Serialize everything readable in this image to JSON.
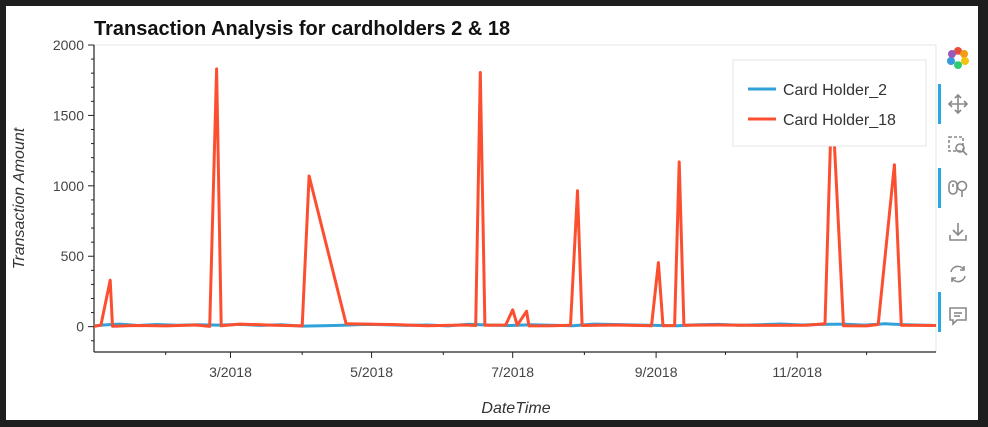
{
  "toolbar": {
    "tools": [
      "bokeh-logo-icon",
      "pan-icon",
      "box-zoom-icon",
      "wheel-zoom-icon",
      "save-icon",
      "reset-icon",
      "hover-icon"
    ]
  },
  "colors": {
    "series_1": "#30a2da",
    "series_2": "#fc4f30",
    "toolbar_accent": "#26aae1"
  },
  "chart_data": {
    "type": "line",
    "title": "Transaction Analysis for cardholders 2 & 18",
    "xlabel": "DateTime",
    "ylabel": "Transaction Amount",
    "xlim": [
      "2018-01-01",
      "2018-12-31"
    ],
    "ylim": [
      -180,
      2000
    ],
    "yticks": [
      0,
      500,
      1000,
      1500,
      2000
    ],
    "xticks": [
      {
        "date": "2018-03-01",
        "label": "3/2018"
      },
      {
        "date": "2018-05-01",
        "label": "5/2018"
      },
      {
        "date": "2018-07-01",
        "label": "7/2018"
      },
      {
        "date": "2018-09-01",
        "label": "9/2018"
      },
      {
        "date": "2018-11-01",
        "label": "11/2018"
      }
    ],
    "legend_position": "top-right",
    "grid": false,
    "series": [
      {
        "name": "Card Holder_2",
        "color": "#30a2da",
        "points": [
          [
            "2018-01-01",
            5
          ],
          [
            "2018-01-05",
            12
          ],
          [
            "2018-01-12",
            18
          ],
          [
            "2018-01-20",
            8
          ],
          [
            "2018-01-28",
            15
          ],
          [
            "2018-02-06",
            10
          ],
          [
            "2018-02-15",
            14
          ],
          [
            "2018-02-24",
            11
          ],
          [
            "2018-03-05",
            16
          ],
          [
            "2018-03-14",
            9
          ],
          [
            "2018-03-23",
            13
          ],
          [
            "2018-04-01",
            4
          ],
          [
            "2018-04-10",
            6
          ],
          [
            "2018-04-19",
            10
          ],
          [
            "2018-04-28",
            16
          ],
          [
            "2018-05-07",
            14
          ],
          [
            "2018-05-16",
            9
          ],
          [
            "2018-05-25",
            12
          ],
          [
            "2018-06-03",
            5
          ],
          [
            "2018-06-12",
            17
          ],
          [
            "2018-06-21",
            11
          ],
          [
            "2018-06-30",
            8
          ],
          [
            "2018-07-09",
            14
          ],
          [
            "2018-07-18",
            10
          ],
          [
            "2018-07-27",
            6
          ],
          [
            "2018-08-05",
            18
          ],
          [
            "2018-08-14",
            15
          ],
          [
            "2018-08-23",
            12
          ],
          [
            "2018-09-01",
            9
          ],
          [
            "2018-09-10",
            7
          ],
          [
            "2018-09-19",
            13
          ],
          [
            "2018-09-28",
            16
          ],
          [
            "2018-10-07",
            10
          ],
          [
            "2018-10-16",
            14
          ],
          [
            "2018-10-25",
            19
          ],
          [
            "2018-11-03",
            12
          ],
          [
            "2018-11-12",
            16
          ],
          [
            "2018-11-21",
            18
          ],
          [
            "2018-11-30",
            11
          ],
          [
            "2018-12-09",
            20
          ],
          [
            "2018-12-18",
            14
          ],
          [
            "2018-12-27",
            10
          ],
          [
            "2018-12-31",
            8
          ]
        ]
      },
      {
        "name": "Card Holder_18",
        "color": "#fc4f30",
        "points": [
          [
            "2018-01-01",
            2
          ],
          [
            "2018-01-04",
            10
          ],
          [
            "2018-01-08",
            330
          ],
          [
            "2018-01-09",
            3
          ],
          [
            "2018-01-20",
            8
          ],
          [
            "2018-02-01",
            5
          ],
          [
            "2018-02-14",
            12
          ],
          [
            "2018-02-20",
            2
          ],
          [
            "2018-02-23",
            1830
          ],
          [
            "2018-02-25",
            6
          ],
          [
            "2018-03-05",
            18
          ],
          [
            "2018-03-20",
            10
          ],
          [
            "2018-04-01",
            5
          ],
          [
            "2018-04-04",
            1070
          ],
          [
            "2018-04-20",
            20
          ],
          [
            "2018-05-10",
            15
          ],
          [
            "2018-05-25",
            6
          ],
          [
            "2018-06-10",
            12
          ],
          [
            "2018-06-15",
            8
          ],
          [
            "2018-06-17",
            1805
          ],
          [
            "2018-06-19",
            10
          ],
          [
            "2018-06-28",
            12
          ],
          [
            "2018-07-01",
            120
          ],
          [
            "2018-07-03",
            10
          ],
          [
            "2018-07-07",
            110
          ],
          [
            "2018-07-08",
            5
          ],
          [
            "2018-07-18",
            6
          ],
          [
            "2018-07-26",
            10
          ],
          [
            "2018-07-29",
            965
          ],
          [
            "2018-07-31",
            8
          ],
          [
            "2018-08-15",
            12
          ],
          [
            "2018-08-30",
            6
          ],
          [
            "2018-09-02",
            455
          ],
          [
            "2018-09-04",
            6
          ],
          [
            "2018-09-09",
            8
          ],
          [
            "2018-09-11",
            1170
          ],
          [
            "2018-09-13",
            10
          ],
          [
            "2018-09-28",
            12
          ],
          [
            "2018-10-15",
            9
          ],
          [
            "2018-11-05",
            10
          ],
          [
            "2018-11-13",
            20
          ],
          [
            "2018-11-16",
            1650
          ],
          [
            "2018-11-21",
            6
          ],
          [
            "2018-12-01",
            5
          ],
          [
            "2018-12-06",
            15
          ],
          [
            "2018-12-13",
            1150
          ],
          [
            "2018-12-16",
            10
          ],
          [
            "2018-12-31",
            8
          ]
        ]
      }
    ]
  }
}
